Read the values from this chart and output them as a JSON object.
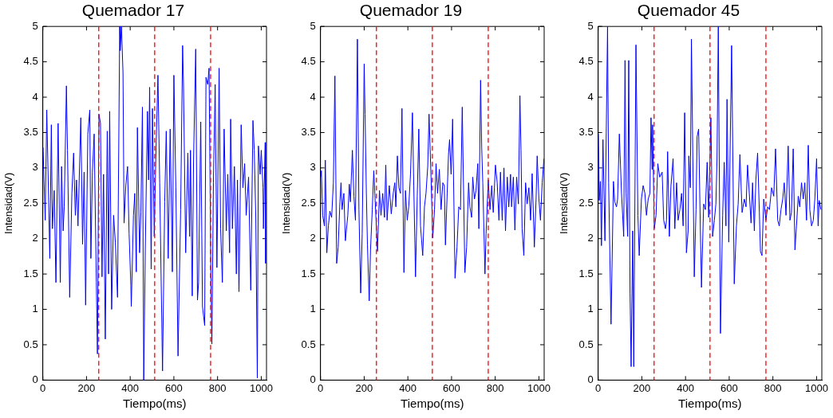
{
  "chart_data": [
    {
      "type": "line",
      "title": "Quemador 17",
      "xlabel": "Tiempo(ms)",
      "ylabel": "Intensidad(V)",
      "xlim": [
        0,
        1024
      ],
      "ylim": [
        0,
        5
      ],
      "xticks": [
        0,
        200,
        400,
        600,
        800,
        1000
      ],
      "yticks": [
        0,
        0.5,
        1,
        1.5,
        2,
        2.5,
        3,
        3.5,
        4,
        4.5,
        5
      ],
      "grid": false,
      "legend": false,
      "marker": "none",
      "line_style": "solid",
      "ref_lines": [
        {
          "axis": "x",
          "value": 256,
          "color": "#ff0000",
          "line_style": "dashed"
        },
        {
          "axis": "x",
          "value": 512,
          "color": "#ff0000",
          "line_style": "dashed"
        },
        {
          "axis": "x",
          "value": 768,
          "color": "#ff0000",
          "line_style": "dashed"
        }
      ],
      "series": [
        {
          "color": "#0000ff",
          "x": [
            1,
            11,
            18,
            32,
            39,
            44,
            52,
            60,
            70,
            80,
            86,
            93,
            98,
            108,
            113,
            123,
            133,
            141,
            149,
            154,
            161,
            174,
            182,
            189,
            196,
            206,
            215,
            220,
            227,
            235,
            245,
            250,
            257,
            264,
            271,
            278,
            286,
            295,
            301,
            306,
            315,
            324,
            332,
            342,
            352,
            354,
            360,
            367,
            372,
            380,
            388,
            395,
            403,
            405,
            415,
            421,
            428,
            433,
            443,
            449,
            456,
            462,
            469,
            479,
            484,
            489,
            496,
            502,
            510,
            517,
            527,
            535,
            548,
            558,
            565,
            574,
            583,
            593,
            600,
            609,
            619,
            631,
            640,
            644,
            654,
            664,
            672,
            676,
            684,
            690,
            700,
            708,
            713,
            723,
            731,
            741,
            747,
            755,
            761,
            769,
            774,
            781,
            789,
            797,
            807,
            814,
            822,
            830,
            840,
            847,
            855,
            860,
            868,
            877,
            886,
            891,
            898,
            908,
            916,
            924,
            931,
            942,
            952,
            962,
            968,
            975,
            982,
            987,
            995,
            1000,
            1008,
            1010,
            1018,
            1020
          ],
          "values": [
            3.29,
            2.26,
            3.82,
            1.72,
            3.61,
            2.14,
            2.68,
            1.38,
            3.63,
            1.38,
            3.02,
            2.11,
            2.45,
            4.16,
            3.25,
            1.17,
            2.64,
            3.21,
            2.33,
            2.83,
            2.18,
            3.71,
            1.92,
            2.94,
            1.06,
            3.48,
            3.82,
            1.72,
            2.94,
            3.48,
            1.38,
            0.37,
            3.76,
            3.63,
            1.46,
            2.91,
            0.58,
            3.52,
            1.5,
            3.8,
            1.0,
            2.33,
            1.95,
            1.17,
            5.0,
            4.66,
            5.0,
            4.35,
            2.22,
            2.75,
            3.02,
            2.07,
            1.34,
            1.04,
            2.33,
            2.64,
            1.53,
            3.57,
            1.8,
            2.37,
            3.86,
            0,
            1.84,
            3.8,
            2.83,
            4.14,
            1.57,
            3.84,
            2.03,
            3.1,
            4.31,
            2.79,
            0.13,
            2.52,
            3.52,
            1.72,
            3.55,
            1.53,
            4.31,
            2.72,
            0.34,
            2.41,
            4.73,
            4.18,
            1.8,
            3.21,
            2.03,
            3.25,
            1.19,
            3.11,
            4.68,
            1.13,
            1.38,
            3.65,
            1.04,
            0.77,
            4.28,
            4.18,
            4.41,
            1.61,
            0.51,
            2.79,
            4.18,
            1.59,
            4.41,
            2.14,
            1.38,
            3.55,
            2.11,
            2.91,
            1.8,
            3.69,
            2.14,
            3.02,
            1.5,
            2.83,
            1.25,
            3.61,
            2.72,
            3.06,
            2.33,
            2.87,
            1.27,
            3.67,
            3.25,
            2.3,
            0.03,
            3.31,
            2.91,
            3.25,
            2.72,
            2.14,
            3.36,
            1.65
          ]
        }
      ]
    },
    {
      "type": "line",
      "title": "Quemador 19",
      "xlabel": "Tiempo(ms)",
      "ylabel": "Intensidad(V)",
      "xlim": [
        0,
        1024
      ],
      "ylim": [
        0,
        5
      ],
      "xticks": [
        0,
        200,
        400,
        600,
        800,
        1000
      ],
      "yticks": [
        0,
        0.5,
        1,
        1.5,
        2,
        2.5,
        3,
        3.5,
        4,
        4.5,
        5
      ],
      "grid": false,
      "legend": false,
      "marker": "none",
      "line_style": "solid",
      "ref_lines": [
        {
          "axis": "x",
          "value": 256,
          "color": "#ff0000",
          "line_style": "dashed"
        },
        {
          "axis": "x",
          "value": 512,
          "color": "#ff0000",
          "line_style": "dashed"
        },
        {
          "axis": "x",
          "value": 768,
          "color": "#ff0000",
          "line_style": "dashed"
        }
      ],
      "series": [
        {
          "color": "#0000ff",
          "x": [
            1,
            4,
            10,
            18,
            22,
            29,
            36,
            43,
            51,
            59,
            66,
            74,
            81,
            89,
            94,
            99,
            107,
            114,
            125,
            132,
            137,
            146,
            153,
            160,
            169,
            176,
            184,
            191,
            200,
            204,
            210,
            215,
            223,
            229,
            237,
            244,
            252,
            261,
            270,
            277,
            285,
            293,
            299,
            305,
            315,
            324,
            333,
            340,
            345,
            352,
            359,
            366,
            373,
            382,
            389,
            397,
            404,
            412,
            421,
            427,
            435,
            443,
            450,
            458,
            468,
            476,
            483,
            491,
            497,
            506,
            514,
            522,
            529,
            536,
            544,
            552,
            560,
            567,
            572,
            580,
            586,
            591,
            598,
            605,
            616,
            625,
            633,
            641,
            649,
            661,
            669,
            678,
            684,
            692,
            697,
            705,
            712,
            720,
            725,
            733,
            738,
            743,
            753,
            758,
            768,
            776,
            784,
            791,
            801,
            809,
            817,
            824,
            832,
            840,
            847,
            855,
            862,
            870,
            875,
            883,
            890,
            898,
            906,
            913,
            918,
            923,
            931,
            939,
            946,
            954,
            962,
            969,
            979,
            987,
            992,
            1000,
            1007,
            1015,
            1023
          ],
          "values": [
            2.87,
            2.96,
            2.33,
            2.18,
            3.11,
            1.8,
            2.18,
            2.39,
            2.3,
            2.79,
            4.3,
            1.65,
            1.88,
            2.52,
            2.79,
            2.41,
            2.64,
            1.97,
            2.33,
            2.77,
            2.52,
            3.25,
            2.6,
            2.26,
            4.82,
            2.41,
            1.23,
            2.07,
            4.47,
            3.76,
            2.64,
            1.91,
            1.12,
            1.84,
            2.41,
            2.96,
            2.41,
            1.82,
            2.68,
            2.33,
            2.64,
            2.3,
            3.04,
            2.26,
            2.75,
            2.35,
            2.64,
            2.79,
            2.45,
            3.17,
            2.72,
            2.64,
            3.84,
            1.52,
            2.68,
            2.26,
            2.45,
            2.91,
            3.78,
            2.75,
            1.46,
            2.6,
            3.55,
            2.18,
            1.76,
            2.45,
            2.64,
            3.02,
            3.76,
            2.87,
            2.01,
            2.41,
            3.06,
            2.64,
            2.98,
            2.41,
            2.79,
            2.75,
            1.91,
            2.64,
            3.19,
            3.4,
            2.91,
            3.69,
            1.44,
            1.88,
            2.45,
            2.41,
            3.86,
            1.52,
            1.88,
            2.79,
            2.45,
            2.3,
            2.87,
            2.56,
            2.68,
            3.06,
            2.14,
            4.24,
            3.29,
            2.79,
            1.5,
            2.07,
            2.83,
            2.41,
            2.75,
            2.37,
            3.04,
            2.79,
            2.26,
            2.94,
            2.26,
            3.0,
            2.11,
            2.87,
            2.45,
            2.91,
            2.45,
            2.87,
            2.12,
            2.87,
            2.49,
            4.02,
            3.25,
            2.14,
            1.76,
            2.79,
            2.49,
            2.72,
            2.26,
            2.92,
            1.88,
            2.56,
            3.17,
            2.56,
            2.26,
            2.79,
            3.13
          ]
        }
      ]
    },
    {
      "type": "line",
      "title": "Quemador 45",
      "xlabel": "Tiempo(ms)",
      "ylabel": "Intensidad(V)",
      "xlim": [
        0,
        1024
      ],
      "ylim": [
        0,
        5
      ],
      "xticks": [
        0,
        200,
        400,
        600,
        800,
        1000
      ],
      "yticks": [
        0,
        0.5,
        1,
        1.5,
        2,
        2.5,
        3,
        3.5,
        4,
        4.5,
        5
      ],
      "grid": false,
      "legend": false,
      "marker": "none",
      "line_style": "solid",
      "ref_lines": [
        {
          "axis": "x",
          "value": 256,
          "color": "#ff0000",
          "line_style": "dashed"
        },
        {
          "axis": "x",
          "value": 512,
          "color": "#ff0000",
          "line_style": "dashed"
        },
        {
          "axis": "x",
          "value": 768,
          "color": "#ff0000",
          "line_style": "dashed"
        }
      ],
      "series": [
        {
          "color": "#0000ff",
          "x": [
            1,
            5,
            10,
            15,
            22,
            31,
            43,
            48,
            59,
            70,
            76,
            84,
            89,
            97,
            107,
            117,
            123,
            128,
            135,
            140,
            146,
            151,
            158,
            163,
            173,
            182,
            188,
            198,
            206,
            214,
            221,
            229,
            237,
            242,
            247,
            249,
            257,
            265,
            273,
            282,
            293,
            300,
            308,
            313,
            318,
            326,
            333,
            343,
            351,
            359,
            366,
            374,
            382,
            389,
            396,
            404,
            412,
            415,
            422,
            427,
            440,
            448,
            453,
            460,
            468,
            473,
            483,
            491,
            499,
            506,
            516,
            524,
            532,
            539,
            544,
            550,
            560,
            570,
            577,
            585,
            590,
            598,
            611,
            623,
            633,
            641,
            649,
            659,
            669,
            677,
            684,
            692,
            700,
            707,
            715,
            722,
            730,
            738,
            743,
            750,
            758,
            768,
            776,
            784,
            794,
            804,
            812,
            822,
            829,
            837,
            845,
            852,
            860,
            870,
            878,
            885,
            893,
            901,
            908,
            916,
            923,
            931,
            939,
            946,
            954,
            962,
            969,
            977,
            985,
            992,
            1000,
            1007,
            1012,
            1020
          ],
          "values": [
            3.48,
            2.54,
            2.81,
            1.9,
            3.4,
            1.97,
            5.0,
            2.79,
            0.79,
            2.81,
            2.52,
            2.45,
            2.56,
            3.48,
            2.64,
            2.03,
            4.52,
            2.64,
            2.03,
            4.52,
            1.23,
            0.19,
            2.11,
            0.19,
            4.74,
            2.33,
            1.76,
            2.56,
            2.75,
            2.64,
            2.33,
            2.56,
            2.64,
            3.71,
            2.98,
            3.61,
            2.14,
            2.33,
            3.06,
            2.87,
            2.94,
            2.26,
            2.14,
            2.26,
            3.23,
            2.03,
            2.73,
            3.13,
            2.14,
            2.79,
            2.26,
            2.41,
            2.64,
            2.18,
            3.78,
            1.8,
            2.11,
            3.17,
            2.72,
            4.82,
            1.46,
            2.41,
            3.44,
            3.55,
            2.11,
            1.31,
            2.49,
            2.41,
            3.08,
            2.3,
            3.71,
            2.03,
            2.26,
            2.49,
            3.1,
            5.0,
            0.66,
            2.33,
            3.08,
            2.18,
            3.97,
            1.95,
            4.73,
            1.36,
            2.18,
            2.49,
            3.19,
            2.37,
            2.56,
            2.45,
            3.04,
            2.64,
            2.22,
            2.79,
            2.11,
            2.83,
            3.21,
            2.37,
            1.82,
            1.76,
            2.56,
            2.26,
            2.45,
            2.41,
            2.72,
            2.6,
            3.27,
            2.26,
            2.18,
            2.41,
            2.56,
            2.79,
            2.33,
            3.31,
            2.26,
            2.37,
            3.27,
            1.84,
            2.18,
            2.6,
            2.45,
            2.79,
            2.56,
            2.79,
            2.26,
            3.32,
            2.41,
            2.18,
            2.26,
            2.56,
            3.13,
            2.18,
            2.54,
            2.41
          ]
        }
      ]
    }
  ]
}
